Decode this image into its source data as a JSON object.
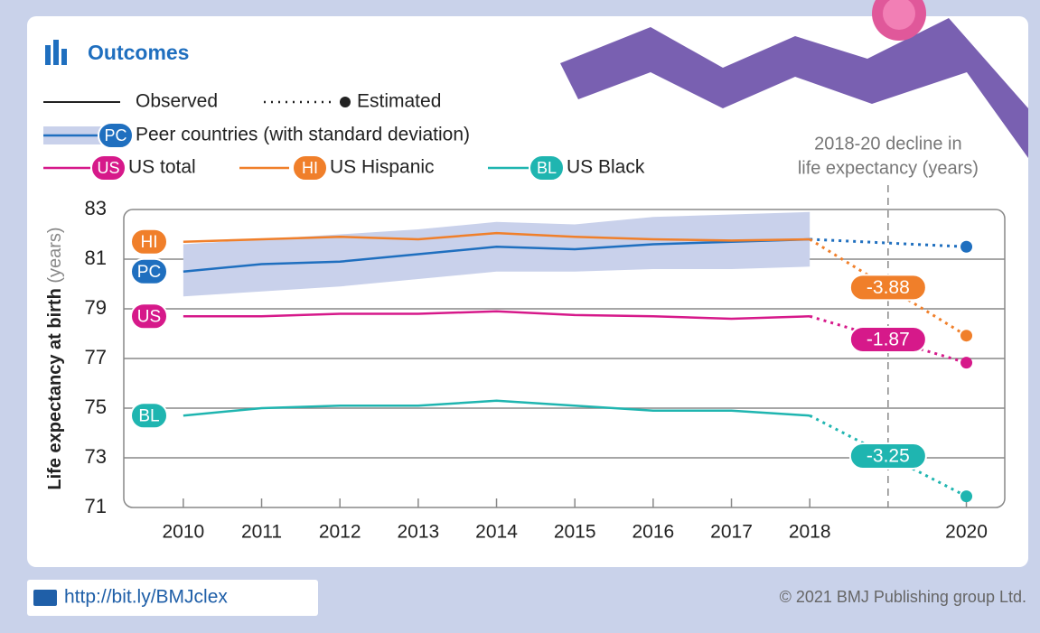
{
  "chart_data": {
    "type": "line",
    "title": "Outcomes",
    "legend_styles": [
      "Observed",
      "Estimated"
    ],
    "ylabel": "Life expectancy at birth",
    "ylabel_unit": "(years)",
    "annotation": [
      "2018-20 decline in",
      "life expectancy (years)"
    ],
    "x": [
      2010,
      2011,
      2012,
      2013,
      2014,
      2015,
      2016,
      2017,
      2018,
      2020
    ],
    "xlim": [
      2009.24,
      2020.49
    ],
    "xticks": [
      2010,
      2011,
      2012,
      2013,
      2014,
      2015,
      2016,
      2017,
      2018,
      2020
    ],
    "ylim": [
      71,
      83
    ],
    "yticks": [
      71,
      73,
      75,
      77,
      79,
      81,
      83
    ],
    "grid": true,
    "series": [
      {
        "name": "Peer countries (with standard deviation)",
        "code": "PC",
        "color": "#1f6fbf",
        "values": [
          80.5,
          80.8,
          80.9,
          81.2,
          81.5,
          81.4,
          81.6,
          81.7,
          81.8,
          81.5
        ],
        "sd_upper": [
          81.6,
          81.8,
          82.0,
          82.2,
          82.5,
          82.4,
          82.7,
          82.8,
          82.9,
          null
        ],
        "sd_lower": [
          79.5,
          79.7,
          79.9,
          80.2,
          80.5,
          80.5,
          80.6,
          80.6,
          80.7,
          null
        ],
        "band_color": "#c9d1eb"
      },
      {
        "name": "US total",
        "code": "US",
        "color": "#d6198a",
        "values": [
          78.7,
          78.7,
          78.8,
          78.8,
          78.9,
          78.75,
          78.7,
          78.6,
          78.7,
          76.83
        ],
        "decline": -1.87
      },
      {
        "name": "US Hispanic",
        "code": "HI",
        "color": "#f07f2a",
        "values": [
          81.7,
          81.8,
          81.9,
          81.8,
          82.05,
          81.9,
          81.8,
          81.75,
          81.8,
          77.92
        ],
        "decline": -3.88
      },
      {
        "name": "US Black",
        "code": "BL",
        "color": "#1fb5b0",
        "values": [
          74.7,
          75.0,
          75.1,
          75.1,
          75.3,
          75.1,
          74.9,
          74.9,
          74.7,
          71.45
        ],
        "decline": -3.25
      }
    ],
    "footer_link": "http://bit.ly/BMJclex",
    "copyright": "© 2021 BMJ Publishing group Ltd."
  }
}
